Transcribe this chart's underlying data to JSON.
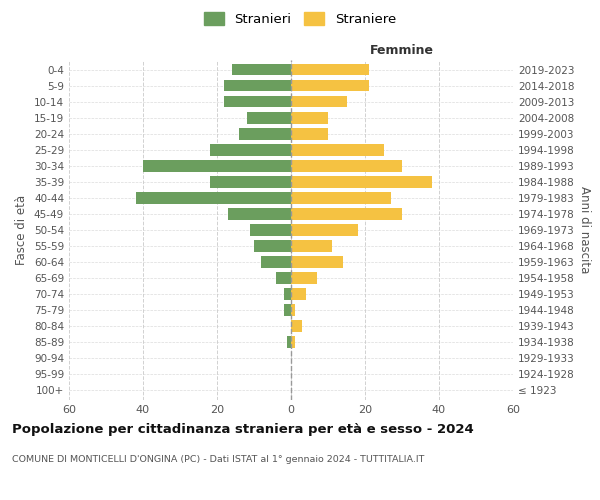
{
  "age_groups": [
    "100+",
    "95-99",
    "90-94",
    "85-89",
    "80-84",
    "75-79",
    "70-74",
    "65-69",
    "60-64",
    "55-59",
    "50-54",
    "45-49",
    "40-44",
    "35-39",
    "30-34",
    "25-29",
    "20-24",
    "15-19",
    "10-14",
    "5-9",
    "0-4"
  ],
  "birth_years": [
    "≤ 1923",
    "1924-1928",
    "1929-1933",
    "1934-1938",
    "1939-1943",
    "1944-1948",
    "1949-1953",
    "1954-1958",
    "1959-1963",
    "1964-1968",
    "1969-1973",
    "1974-1978",
    "1979-1983",
    "1984-1988",
    "1989-1993",
    "1994-1998",
    "1999-2003",
    "2004-2008",
    "2009-2013",
    "2014-2018",
    "2019-2023"
  ],
  "males": [
    0,
    0,
    0,
    1,
    0,
    2,
    2,
    4,
    8,
    10,
    11,
    17,
    42,
    22,
    40,
    22,
    14,
    12,
    18,
    18,
    16
  ],
  "females": [
    0,
    0,
    0,
    1,
    3,
    1,
    4,
    7,
    14,
    11,
    18,
    30,
    27,
    38,
    30,
    25,
    10,
    10,
    15,
    21,
    21
  ],
  "male_color": "#6b9e5e",
  "female_color": "#f5c242",
  "bg_color": "#ffffff",
  "grid_color": "#cccccc",
  "title": "Popolazione per cittadinanza straniera per età e sesso - 2024",
  "subtitle": "COMUNE DI MONTICELLI D'ONGINA (PC) - Dati ISTAT al 1° gennaio 2024 - TUTTITALIA.IT",
  "xlabel_right": "Femmine",
  "ylabel_left": "Fasce di età",
  "ylabel_right": "Anni di nascita",
  "legend_male": "Stranieri",
  "legend_female": "Straniere",
  "xlim": 60
}
